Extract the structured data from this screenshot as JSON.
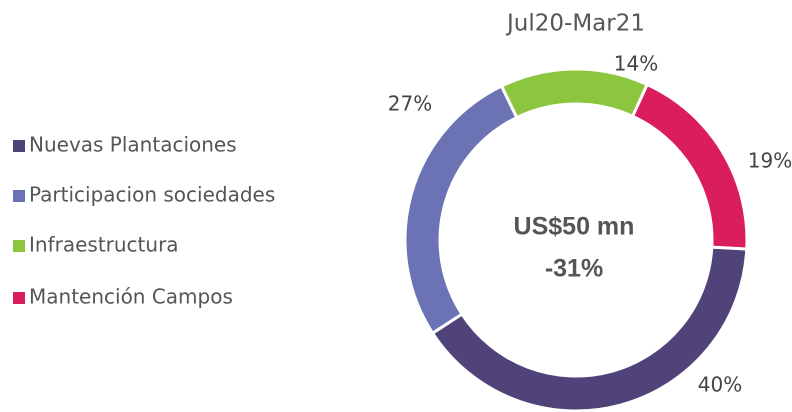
{
  "chart_data": {
    "type": "pie",
    "title": "Jul20-Mar21",
    "categories": [
      "Nuevas Plantaciones",
      "Participacion sociedades",
      "Infraestructura",
      "Mantención Campos"
    ],
    "values": [
      40,
      27,
      14,
      19
    ],
    "value_labels": [
      "40%",
      "27%",
      "14%",
      "19%"
    ],
    "colors": [
      "#504379",
      "#6b73b5",
      "#8cc63f",
      "#da1d5d"
    ],
    "annotations": [
      "US$50 mn",
      "-31%"
    ]
  }
}
